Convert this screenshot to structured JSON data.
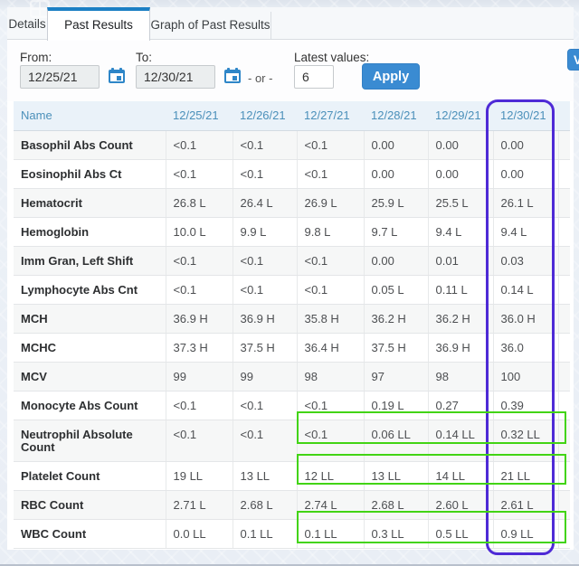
{
  "tabs": [
    {
      "label": "Details",
      "active": false
    },
    {
      "label": "Past Results",
      "active": true
    },
    {
      "label": "Graph of Past Results",
      "active": false
    }
  ],
  "filters": {
    "from_label": "From:",
    "from_value": "12/25/21",
    "to_label": "To:",
    "to_value": "12/30/21",
    "or_text": "- or -",
    "latest_label": "Latest values:",
    "latest_value": "6",
    "apply_label": "Apply",
    "view_button_visible_text": "Vi"
  },
  "table": {
    "columns": [
      "Name",
      "12/25/21",
      "12/26/21",
      "12/27/21",
      "12/28/21",
      "12/29/21",
      "12/30/21"
    ],
    "rows": [
      {
        "name": "Basophil Abs Count",
        "values": [
          "<0.1",
          "<0.1",
          "<0.1",
          "0.00",
          "0.00",
          "0.00"
        ]
      },
      {
        "name": "Eosinophil Abs Ct",
        "values": [
          "<0.1",
          "<0.1",
          "<0.1",
          "0.00",
          "0.00",
          "0.00"
        ]
      },
      {
        "name": "Hematocrit",
        "values": [
          "26.8 L",
          "26.4 L",
          "26.9 L",
          "25.9 L",
          "25.5 L",
          "26.1 L"
        ]
      },
      {
        "name": "Hemoglobin",
        "values": [
          "10.0 L",
          "9.9 L",
          "9.8 L",
          "9.7 L",
          "9.4 L",
          "9.4 L"
        ]
      },
      {
        "name": "Imm Gran, Left Shift",
        "values": [
          "<0.1",
          "<0.1",
          "<0.1",
          "0.00",
          "0.01",
          "0.03"
        ]
      },
      {
        "name": "Lymphocyte Abs Cnt",
        "values": [
          "<0.1",
          "<0.1",
          "<0.1",
          "0.05 L",
          "0.11 L",
          "0.14 L"
        ]
      },
      {
        "name": "MCH",
        "values": [
          "36.9 H",
          "36.9 H",
          "35.8 H",
          "36.2 H",
          "36.2 H",
          "36.0 H"
        ]
      },
      {
        "name": "MCHC",
        "values": [
          "37.3 H",
          "37.5 H",
          "36.4 H",
          "37.5 H",
          "36.9 H",
          "36.0"
        ]
      },
      {
        "name": "MCV",
        "values": [
          "99",
          "99",
          "98",
          "97",
          "98",
          "100"
        ]
      },
      {
        "name": "Monocyte Abs Count",
        "values": [
          "<0.1",
          "<0.1",
          "<0.1",
          "0.19 L",
          "0.27",
          "0.39"
        ]
      },
      {
        "name": "Neutrophil Absolute Count",
        "values": [
          "<0.1",
          "<0.1",
          "<0.1",
          "0.06 LL",
          "0.14 LL",
          "0.32 LL"
        ]
      },
      {
        "name": "Platelet Count",
        "values": [
          "19 LL",
          "13 LL",
          "12 LL",
          "13 LL",
          "14 LL",
          "21 LL"
        ]
      },
      {
        "name": "RBC Count",
        "values": [
          "2.71 L",
          "2.68 L",
          "2.74 L",
          "2.68 L",
          "2.60 L",
          "2.61 L"
        ]
      },
      {
        "name": "WBC Count",
        "values": [
          "0.0 LL",
          "0.1 LL",
          "0.1 LL",
          "0.3 LL",
          "0.5 LL",
          "0.9 LL"
        ]
      }
    ]
  },
  "annotations": {
    "purple_circled_column": "12/30/21",
    "purple_color": "#4e2ad6",
    "green_color": "#42d414",
    "green_boxed_rows": [
      "Neutrophil Absolute Count",
      "Platelet Count",
      "WBC Count"
    ],
    "green_boxed_columns": [
      "12/27/21",
      "12/28/21",
      "12/29/21",
      "12/30/21"
    ]
  },
  "colors": {
    "tab_accent": "#1b7fc4",
    "button_blue": "#3a8bd2",
    "header_text_blue": "#4b90ba",
    "calendar_icon_blue": "#2e86c8"
  }
}
